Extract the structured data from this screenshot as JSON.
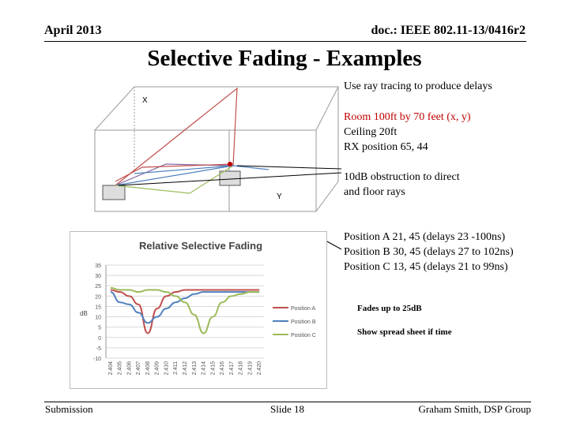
{
  "header": {
    "date": "April 2013",
    "doc_id": "doc.: IEEE 802.11-13/0416r2"
  },
  "slide_title": "Selective Fading - Examples",
  "diagram": {
    "label_x": "X",
    "label_y": "Y"
  },
  "notes": {
    "ray_tracing": "Use ray tracing to produce delays",
    "room": "Room 100ft by 70 feet  (x, y)",
    "ceiling": "Ceiling 20ft",
    "rx_position": "RX position  65, 44",
    "obstruction_1": "10dB obstruction to direct",
    "obstruction_2": "and floor rays",
    "pos_a": "Position A  21, 45  (delays 23 -100ns)",
    "pos_b": "Position B  30, 45 (delays 27 to 102ns)",
    "pos_c": "Position C 13, 45 (delays 21 to 99ns)",
    "fades": "Fades up to 25dB",
    "spreadsheet": "Show spread sheet  if  time"
  },
  "footer": {
    "left": "Submission",
    "center": "Slide 18",
    "right": "Graham Smith, DSP Group"
  },
  "colors": {
    "pos_a": "#c0504d",
    "pos_b": "#4f81bd",
    "pos_c": "#9bbb59",
    "note_red": "#c00000"
  },
  "chart_data": {
    "type": "line",
    "title": "Relative Selective Fading",
    "ylabel": "dB",
    "xlabel": "",
    "ylim": [
      -10,
      35
    ],
    "yticks": [
      "35",
      "30",
      "25",
      "20",
      "15",
      "10",
      "5",
      "0",
      "-5",
      "-10"
    ],
    "categories": [
      "2.404",
      "2.405",
      "2.406",
      "2.407",
      "2.408",
      "2.409",
      "2.410",
      "2.411",
      "2.412",
      "2.413",
      "2.414",
      "2.415",
      "2.416",
      "2.417",
      "2.418",
      "2.419",
      "2.420"
    ],
    "grid": true,
    "legend_position": "right",
    "series": [
      {
        "name": "Position A",
        "color": "#c0504d",
        "values": [
          23,
          22,
          20,
          16,
          2,
          14,
          20,
          22,
          23,
          23,
          23,
          23,
          23,
          23,
          23,
          23,
          23
        ]
      },
      {
        "name": "Position B",
        "color": "#4f81bd",
        "values": [
          22,
          17,
          16,
          12,
          7,
          10,
          14,
          17,
          19,
          21,
          22,
          22,
          22,
          22,
          22,
          22,
          22
        ]
      },
      {
        "name": "Position C",
        "color": "#9bbb59",
        "values": [
          24,
          23,
          23,
          22,
          23,
          23,
          22,
          20,
          17,
          11,
          2,
          10,
          17,
          20,
          21,
          22,
          22
        ]
      }
    ]
  }
}
